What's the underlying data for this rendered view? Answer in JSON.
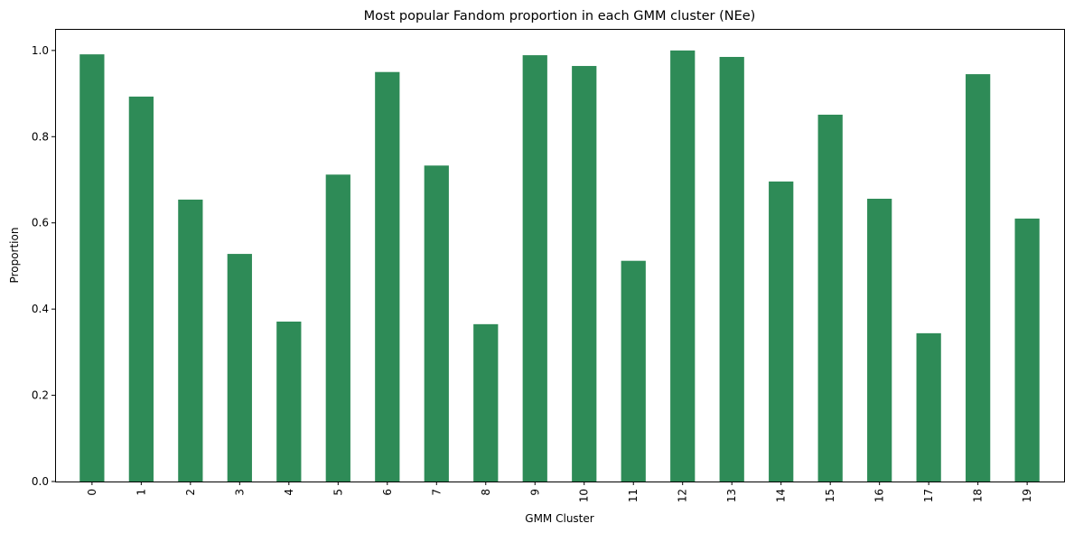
{
  "chart_data": {
    "type": "bar",
    "title": "Most popular Fandom proportion in each GMM cluster (NEe)",
    "xlabel": "GMM Cluster",
    "ylabel": "Proportion",
    "categories": [
      "0",
      "1",
      "2",
      "3",
      "4",
      "5",
      "6",
      "7",
      "8",
      "9",
      "10",
      "11",
      "12",
      "13",
      "14",
      "15",
      "16",
      "17",
      "18",
      "19"
    ],
    "values": [
      0.991,
      0.893,
      0.654,
      0.528,
      0.371,
      0.712,
      0.95,
      0.733,
      0.365,
      0.989,
      0.964,
      0.512,
      1.0,
      0.985,
      0.696,
      0.851,
      0.656,
      0.344,
      0.945,
      0.61
    ],
    "ylim": [
      0,
      1.05
    ],
    "yticks": [
      "0.0",
      "0.2",
      "0.4",
      "0.6",
      "0.8",
      "1.0"
    ],
    "grid": false,
    "legend": "none",
    "bar_color": "#2e8b57"
  }
}
